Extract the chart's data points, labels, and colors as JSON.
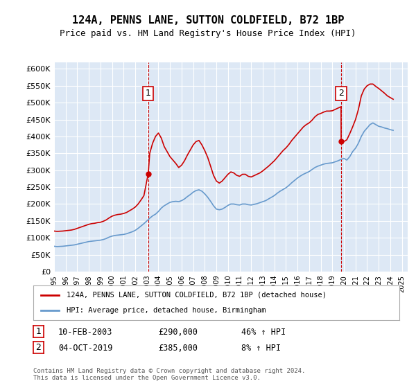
{
  "title": "124A, PENNS LANE, SUTTON COLDFIELD, B72 1BP",
  "subtitle": "Price paid vs. HM Land Registry's House Price Index (HPI)",
  "background_color": "#dde8f5",
  "plot_bg_color": "#dde8f5",
  "legend_line1": "124A, PENNS LANE, SUTTON COLDFIELD, B72 1BP (detached house)",
  "legend_line2": "HPI: Average price, detached house, Birmingham",
  "footnote": "Contains HM Land Registry data © Crown copyright and database right 2024.\nThis data is licensed under the Open Government Licence v3.0.",
  "sale1_label": "1",
  "sale1_date": "10-FEB-2003",
  "sale1_price": "£290,000",
  "sale1_hpi": "46% ↑ HPI",
  "sale2_label": "2",
  "sale2_date": "04-OCT-2019",
  "sale2_price": "£385,000",
  "sale2_hpi": "8% ↑ HPI",
  "hpi_color": "#6699cc",
  "price_color": "#cc0000",
  "marker_color": "#cc0000",
  "dashed_line_color": "#cc0000",
  "ylim": [
    0,
    620000
  ],
  "yticks": [
    0,
    50000,
    100000,
    150000,
    200000,
    250000,
    300000,
    350000,
    400000,
    450000,
    500000,
    550000,
    600000
  ],
  "hpi_data": {
    "years": [
      1995.0,
      1995.25,
      1995.5,
      1995.75,
      1996.0,
      1996.25,
      1996.5,
      1996.75,
      1997.0,
      1997.25,
      1997.5,
      1997.75,
      1998.0,
      1998.25,
      1998.5,
      1998.75,
      1999.0,
      1999.25,
      1999.5,
      1999.75,
      2000.0,
      2000.25,
      2000.5,
      2000.75,
      2001.0,
      2001.25,
      2001.5,
      2001.75,
      2002.0,
      2002.25,
      2002.5,
      2002.75,
      2003.0,
      2003.25,
      2003.5,
      2003.75,
      2004.0,
      2004.25,
      2004.5,
      2004.75,
      2005.0,
      2005.25,
      2005.5,
      2005.75,
      2006.0,
      2006.25,
      2006.5,
      2006.75,
      2007.0,
      2007.25,
      2007.5,
      2007.75,
      2008.0,
      2008.25,
      2008.5,
      2008.75,
      2009.0,
      2009.25,
      2009.5,
      2009.75,
      2010.0,
      2010.25,
      2010.5,
      2010.75,
      2011.0,
      2011.25,
      2011.5,
      2011.75,
      2012.0,
      2012.25,
      2012.5,
      2012.75,
      2013.0,
      2013.25,
      2013.5,
      2013.75,
      2014.0,
      2014.25,
      2014.5,
      2014.75,
      2015.0,
      2015.25,
      2015.5,
      2015.75,
      2016.0,
      2016.25,
      2016.5,
      2016.75,
      2017.0,
      2017.25,
      2017.5,
      2017.75,
      2018.0,
      2018.25,
      2018.5,
      2018.75,
      2019.0,
      2019.25,
      2019.5,
      2019.75,
      2020.0,
      2020.25,
      2020.5,
      2020.75,
      2021.0,
      2021.25,
      2021.5,
      2021.75,
      2022.0,
      2022.25,
      2022.5,
      2022.75,
      2023.0,
      2023.25,
      2023.5,
      2023.75,
      2024.0,
      2024.25
    ],
    "values": [
      75000,
      74000,
      74500,
      75000,
      76000,
      77000,
      78000,
      79000,
      81000,
      83000,
      85000,
      87000,
      89000,
      90000,
      91000,
      92000,
      93000,
      95000,
      98000,
      102000,
      105000,
      107000,
      108000,
      109000,
      110000,
      112000,
      115000,
      118000,
      122000,
      128000,
      135000,
      142000,
      150000,
      158000,
      165000,
      170000,
      178000,
      188000,
      195000,
      200000,
      205000,
      207000,
      208000,
      207000,
      210000,
      215000,
      222000,
      228000,
      235000,
      240000,
      242000,
      238000,
      230000,
      220000,
      208000,
      195000,
      185000,
      183000,
      185000,
      190000,
      196000,
      200000,
      200000,
      198000,
      197000,
      200000,
      200000,
      198000,
      197000,
      199000,
      201000,
      204000,
      207000,
      210000,
      215000,
      220000,
      225000,
      232000,
      238000,
      243000,
      248000,
      255000,
      263000,
      270000,
      277000,
      283000,
      288000,
      292000,
      296000,
      302000,
      308000,
      312000,
      315000,
      318000,
      320000,
      321000,
      322000,
      325000,
      328000,
      332000,
      335000,
      330000,
      340000,
      355000,
      365000,
      380000,
      400000,
      415000,
      425000,
      435000,
      440000,
      435000,
      430000,
      428000,
      425000,
      423000,
      420000,
      418000
    ]
  },
  "price_data": {
    "years": [
      1995.0,
      1995.25,
      1995.5,
      1995.75,
      1996.0,
      1996.25,
      1996.5,
      1996.75,
      1997.0,
      1997.25,
      1997.5,
      1997.75,
      1998.0,
      1998.25,
      1998.5,
      1998.75,
      1999.0,
      1999.25,
      1999.5,
      1999.75,
      2000.0,
      2000.25,
      2000.5,
      2000.75,
      2001.0,
      2001.25,
      2001.5,
      2001.75,
      2002.0,
      2002.25,
      2002.5,
      2002.75,
      2003.12,
      2003.25,
      2003.5,
      2003.75,
      2004.0,
      2004.25,
      2004.5,
      2004.75,
      2005.0,
      2005.25,
      2005.5,
      2005.75,
      2006.0,
      2006.25,
      2006.5,
      2006.75,
      2007.0,
      2007.25,
      2007.5,
      2007.75,
      2008.0,
      2008.25,
      2008.5,
      2008.75,
      2009.0,
      2009.25,
      2009.5,
      2009.75,
      2010.0,
      2010.25,
      2010.5,
      2010.75,
      2011.0,
      2011.25,
      2011.5,
      2011.75,
      2012.0,
      2012.25,
      2012.5,
      2012.75,
      2013.0,
      2013.25,
      2013.5,
      2013.75,
      2014.0,
      2014.25,
      2014.5,
      2014.75,
      2015.0,
      2015.25,
      2015.5,
      2015.75,
      2016.0,
      2016.25,
      2016.5,
      2016.75,
      2017.0,
      2017.25,
      2017.5,
      2017.75,
      2018.0,
      2018.25,
      2018.5,
      2018.75,
      2019.0,
      2019.25,
      2019.5,
      2019.75,
      2019.76,
      2019.77,
      2019.78,
      2019.79,
      2019.8,
      2020.0,
      2020.25,
      2020.5,
      2020.75,
      2021.0,
      2021.25,
      2021.5,
      2021.75,
      2022.0,
      2022.25,
      2022.5,
      2022.75,
      2023.0,
      2023.25,
      2023.5,
      2023.75,
      2024.0,
      2024.25
    ],
    "values": [
      120000,
      119000,
      119500,
      120000,
      121000,
      122000,
      123000,
      125000,
      128000,
      131000,
      134000,
      137000,
      140000,
      142000,
      143000,
      145000,
      146000,
      149000,
      153000,
      159000,
      164000,
      167000,
      169000,
      170000,
      172000,
      175000,
      180000,
      185000,
      191000,
      200000,
      212000,
      225000,
      290000,
      350000,
      380000,
      400000,
      410000,
      395000,
      370000,
      355000,
      340000,
      330000,
      320000,
      308000,
      315000,
      328000,
      345000,
      360000,
      375000,
      385000,
      388000,
      375000,
      358000,
      338000,
      312000,
      285000,
      268000,
      262000,
      268000,
      278000,
      288000,
      295000,
      292000,
      285000,
      282000,
      288000,
      288000,
      282000,
      280000,
      284000,
      288000,
      292000,
      298000,
      305000,
      312000,
      320000,
      328000,
      338000,
      348000,
      358000,
      366000,
      376000,
      388000,
      398000,
      408000,
      418000,
      428000,
      435000,
      440000,
      448000,
      458000,
      465000,
      468000,
      472000,
      475000,
      475000,
      476000,
      480000,
      484000,
      488000,
      385000,
      384000,
      383000,
      382000,
      381000,
      385000,
      390000,
      408000,
      428000,
      450000,
      480000,
      520000,
      540000,
      550000,
      555000,
      555000,
      548000,
      542000,
      535000,
      528000,
      520000,
      515000,
      510000
    ]
  },
  "sale1_year": 2003.12,
  "sale1_value": 290000,
  "sale2_year": 2019.75,
  "sale2_value": 385000,
  "xmin": 1995,
  "xmax": 2025.5
}
